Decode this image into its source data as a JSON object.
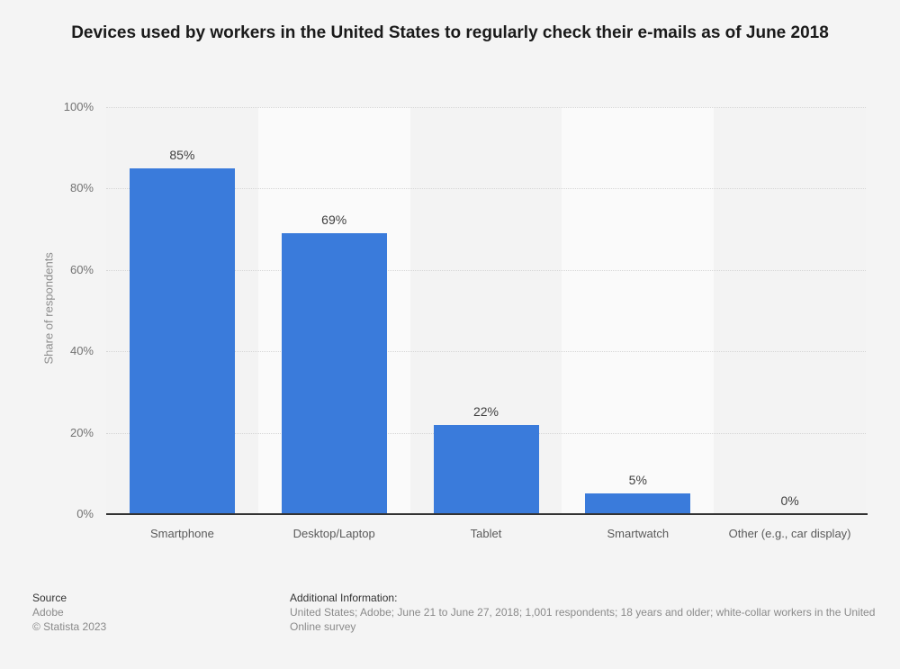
{
  "title": "Devices used by workers in the United States to regularly check their e-mails as of June 2018",
  "chart_data": {
    "type": "bar",
    "categories": [
      "Smartphone",
      "Desktop/Laptop",
      "Tablet",
      "Smartwatch",
      "Other (e.g., car display)"
    ],
    "values": [
      85,
      69,
      22,
      5,
      0
    ],
    "value_labels": [
      "85%",
      "69%",
      "22%",
      "5%",
      "0%"
    ],
    "title": "Devices used by workers in the United States to regularly check their e-mails as of June 2018",
    "xlabel": "",
    "ylabel": "Share of respondents",
    "ylim": [
      0,
      100
    ],
    "yticks": [
      0,
      20,
      40,
      60,
      80,
      100
    ],
    "ytick_labels": [
      "0%",
      "20%",
      "40%",
      "60%",
      "80%",
      "100%"
    ],
    "grid": "horizontal-dotted",
    "legend": "none",
    "bar_color": "#3a7bdb",
    "band_color_odd": "#f3f3f3",
    "band_color_even": "#fafafa"
  },
  "footer": {
    "source_label": "Source",
    "source_name": "Adobe",
    "copyright": "© Statista 2023",
    "additional_info_label": "Additional Information:",
    "additional_info": "United States; Adobe; June 21 to June 27, 2018; 1,001 respondents; 18 years and older; white-collar workers in the United",
    "survey_type": "Online survey"
  },
  "colors": {
    "background": "#f4f4f4",
    "axis": "#333333",
    "gridline": "#d6d6d6",
    "title_text": "#1a1a1a",
    "tick_text": "#737373",
    "category_text": "#5a5a5a",
    "value_label_text": "#404040",
    "footer_heading_text": "#333333",
    "footer_body_text": "#8a8a8a"
  }
}
